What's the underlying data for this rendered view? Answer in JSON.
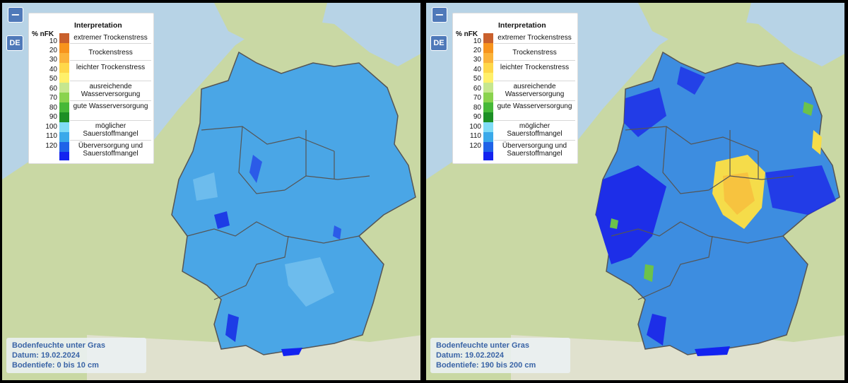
{
  "panels": [
    {
      "zoom_out_label": "−",
      "region_button": "DE",
      "caption": {
        "line1": "Bodenfeuchte unter Gras",
        "line2": "Datum: 19.02.2024",
        "line3": "Bodentiefe: 0 bis 10 cm"
      }
    },
    {
      "zoom_out_label": "−",
      "region_button": "DE",
      "caption": {
        "line1": "Bodenfeuchte unter Gras",
        "line2": "Datum: 19.02.2024",
        "line3": "Bodentiefe: 190 bis 200 cm"
      }
    }
  ],
  "legend": {
    "title": "Interpretation",
    "unit": "% nFK",
    "ticks": [
      "10",
      "20",
      "30",
      "40",
      "50",
      "60",
      "70",
      "80",
      "90",
      "100",
      "110",
      "120"
    ],
    "classes": [
      {
        "label": "extremer Trockenstress",
        "color": "#c9602c"
      },
      {
        "label": "Trockenstress",
        "color": "#f59a1b"
      },
      {
        "label": "leichter Trockenstress",
        "color": "#ffe35a"
      },
      {
        "label": "ausreichende Wasserversorgung",
        "color": "#a6dd66"
      },
      {
        "label": "gute Wasserversorgung",
        "color": "#1f9a2b"
      },
      {
        "label": "möglicher Sauerstoffmangel",
        "color": "#6ad0f2"
      },
      {
        "label": "Überversorgung und Sauerstoffmangel",
        "color": "#1323f0"
      }
    ],
    "swatch_colors": [
      "#c9602c",
      "#f7941d",
      "#fbb33a",
      "#ffd84a",
      "#fff06a",
      "#c6e78f",
      "#8ad34e",
      "#46b838",
      "#1c8f25",
      "#80dcf6",
      "#3aa9ea",
      "#1f63e8",
      "#1323f0"
    ]
  },
  "map": {
    "sea_color": "#b7d3e6",
    "land_color": "#c9d8a4",
    "alps_color": "#e6e3d8",
    "germany_base_left": "#4aa6e6",
    "germany_base_right": "#3d8de0"
  }
}
